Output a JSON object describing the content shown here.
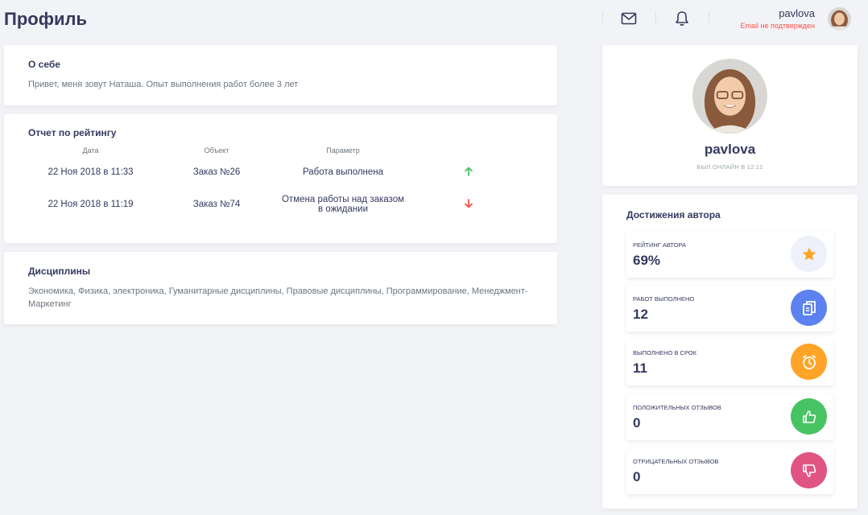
{
  "header": {
    "title": "Профиль",
    "user_name": "pavlova",
    "email_status": "Email не подтвержден",
    "icons": [
      "mail-icon",
      "bell-icon"
    ]
  },
  "about": {
    "title": "О себе",
    "text": "Привет, меня зовут Наташа. Опыт выполнения работ более 3 лет"
  },
  "rating": {
    "title": "Отчет по рейтингу",
    "columns": [
      "Дата",
      "Объект",
      "Параметр",
      ""
    ],
    "rows": [
      {
        "date": "22 Ноя 2018 в 11:33",
        "object": "Заказ №26",
        "param_1": "Работа выполнена",
        "param_2": "",
        "trend": "up",
        "trend_color": "#47c363"
      },
      {
        "date": "22 Ноя 2018 в 11:19",
        "object": "Заказ №74",
        "param_1": "Отмена работы над заказом",
        "param_2": "в ожидании",
        "trend": "down",
        "trend_color": "#fc544b"
      }
    ]
  },
  "disciplines": {
    "title": "Дисциплины",
    "text": "Экономика, Физика, электроника, Гуманитарные дисциплины, Правовые дисциплины, Программирование, Менеджмент-Маркетинг"
  },
  "profile": {
    "name": "pavlova",
    "status": "Был онлайн в 12:12"
  },
  "achievements": {
    "title": "Достижения автора",
    "items": [
      {
        "label": "Рейтинг автора",
        "value": "69%",
        "icon": "star-icon",
        "bg": "#eef0fb",
        "fg": "#ffa426"
      },
      {
        "label": "Работ выполнено",
        "value": "12",
        "icon": "document-copy-icon",
        "bg": "#5b82ee",
        "fg": "#ffffff"
      },
      {
        "label": "Выполнено в срок",
        "value": "11",
        "icon": "alarm-clock-icon",
        "bg": "#ffa426",
        "fg": "#ffffff"
      },
      {
        "label": "Положительных отзывов",
        "value": "0",
        "icon": "thumbs-up-icon",
        "bg": "#47c363",
        "fg": "#ffffff"
      },
      {
        "label": "Отрицательных отзывов",
        "value": "0",
        "icon": "thumbs-down-icon",
        "bg": "#e05482",
        "fg": "#ffffff"
      }
    ]
  }
}
